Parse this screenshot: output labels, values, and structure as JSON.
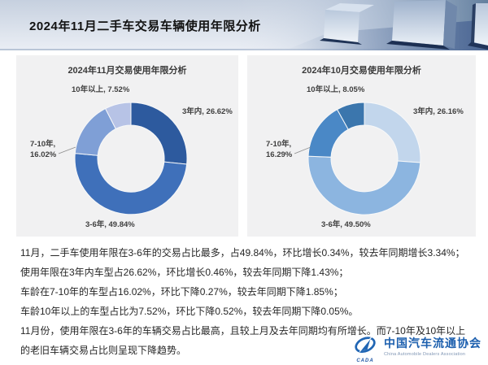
{
  "header": {
    "title": "2024年11月二手车交易车辆使用年限分析"
  },
  "chart_data": [
    {
      "type": "pie",
      "subtype": "donut",
      "title": "2024年11月交易使用年限分析",
      "categories": [
        "3年内",
        "3-6年",
        "7-10年",
        "10年以上"
      ],
      "values": [
        26.62,
        49.84,
        16.02,
        7.52
      ],
      "colors": [
        "#2d5a9e",
        "#3f70ba",
        "#7f9fd6",
        "#b7c3e6"
      ],
      "point_labels": [
        "3年内, 26.62%",
        "3-6年, 49.84%",
        "7-10年,\n16.02%",
        "10年以上, 7.52%"
      ],
      "start_angle_deg": 0,
      "direction": "clockwise",
      "legend": "none"
    },
    {
      "type": "pie",
      "subtype": "donut",
      "title": "2024年10月交易使用年限分析",
      "categories": [
        "3年内",
        "3-6年",
        "7-10年",
        "10年以上"
      ],
      "values": [
        26.16,
        49.5,
        16.29,
        8.05
      ],
      "colors": [
        "#c2d6ec",
        "#8cb5e0",
        "#4a88c6",
        "#3b76ad"
      ],
      "point_labels": [
        "3年内, 26.16%",
        "3-6年, 49.50%",
        "7-10年,\n16.29%",
        "10年以上, 8.05%"
      ],
      "start_angle_deg": 0,
      "direction": "clockwise",
      "legend": "none"
    }
  ],
  "body": {
    "lines": [
      "11月，二手车使用年限在3-6年的交易占比最多，占49.84%，环比增长0.34%，较去年同期增长3.34%；",
      "使用年限在3年内车型占26.62%，环比增长0.46%，较去年同期下降1.43%；",
      "车龄在7-10年的车型占16.02%，环比下降0.27%，较去年同期下降1.85%；",
      "车龄10年以上的车型占比为7.52%，环比下降0.52%，较去年同期下降0.05%。",
      "11月份，使用年限在3-6年的车辆交易占比最高，且较上月及去年同期均有所增长。而7-10年及10年以上的老旧车辆交易占比则呈现下降趋势。"
    ]
  },
  "logo": {
    "cn": "中国汽车流通协会",
    "en": "China Automobile Dealers Association",
    "mark": "CADA",
    "color": "#1c5fae"
  }
}
